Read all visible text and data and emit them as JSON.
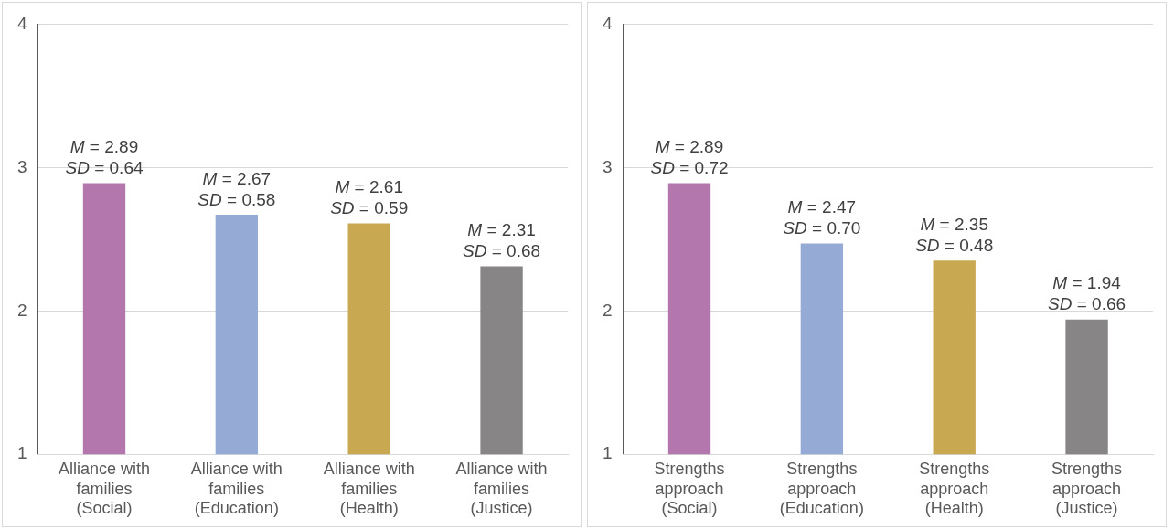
{
  "chart_data": [
    {
      "type": "bar",
      "categories": [
        "Alliance with families (Social)",
        "Alliance with families (Education)",
        "Alliance with families (Health)",
        "Alliance with families (Justice)"
      ],
      "values": [
        2.89,
        2.67,
        2.61,
        2.31
      ],
      "colors": [
        "#b377ae",
        "#95abd5",
        "#c8a851",
        "#878586"
      ],
      "value_labels": [
        "M = 2.89\nSD = 0.64",
        "M = 2.67\nSD = 0.58",
        "M = 2.61\nSD = 0.59",
        "M = 2.31\nSD = 0.68"
      ],
      "ylim": [
        1,
        4
      ],
      "yticks": [
        1,
        2,
        3,
        4
      ],
      "grid": "y",
      "legend": false
    },
    {
      "type": "bar",
      "categories": [
        "Strengths approach (Social)",
        "Strengths approach (Education)",
        "Strengths approach (Health)",
        "Strengths approach (Justice)"
      ],
      "values": [
        2.89,
        2.47,
        2.35,
        1.94
      ],
      "colors": [
        "#b377ae",
        "#95abd5",
        "#c8a851",
        "#878586"
      ],
      "value_labels": [
        "M = 2.89\nSD = 0.72",
        "M = 2.47\nSD = 0.70",
        "M = 2.35\nSD = 0.48",
        "M = 1.94\nSD = 0.66"
      ],
      "ylim": [
        1,
        4
      ],
      "yticks": [
        1,
        2,
        3,
        4
      ],
      "grid": "y",
      "legend": false
    }
  ]
}
